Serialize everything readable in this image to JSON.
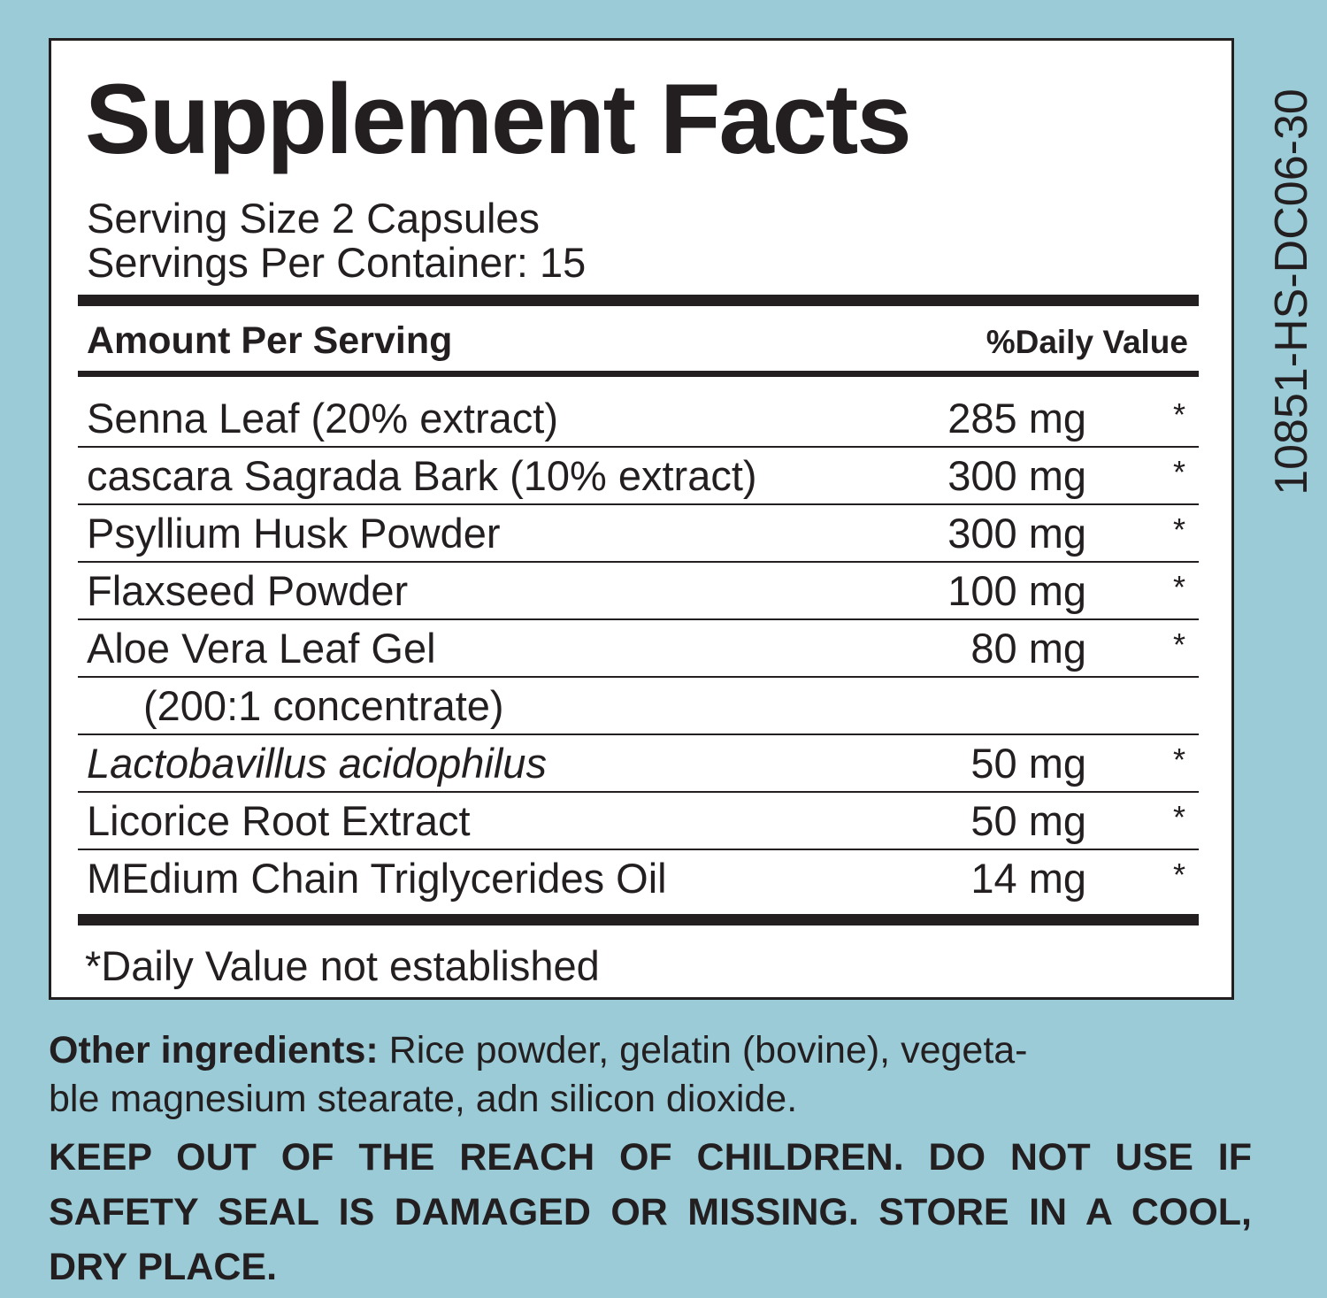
{
  "panel": {
    "title": "Supplement Facts",
    "serving_size": "Serving Size 2 Capsules",
    "servings_per_container": "Servings Per Container: 15",
    "header": {
      "amount": "Amount Per Serving",
      "daily_value": "%Daily Value"
    },
    "rows": [
      {
        "name": "Senna Leaf (20% extract)",
        "amount": "285 mg",
        "daily_value": "*"
      },
      {
        "name": "cascara Sagrada Bark (10% extract)",
        "amount": "300 mg",
        "daily_value": "*"
      },
      {
        "name": "Psyllium Husk Powder",
        "amount": "300 mg",
        "daily_value": "*"
      },
      {
        "name": "Flaxseed Powder",
        "amount": "100 mg",
        "daily_value": "*"
      },
      {
        "name": "Aloe Vera Leaf Gel",
        "amount": "80 mg",
        "daily_value": "*",
        "note": "(200:1 concentrate)"
      },
      {
        "name": "Lactobavillus acidophilus",
        "amount": "50 mg",
        "daily_value": "*",
        "italic": true
      },
      {
        "name": "Licorice Root Extract",
        "amount": "50 mg",
        "daily_value": "*"
      },
      {
        "name": "MEdium Chain Triglycerides Oil",
        "amount": "14 mg",
        "daily_value": "*"
      }
    ],
    "footnote": "*Daily Value not established"
  },
  "other_ingredients": {
    "label": "Other ingredients:",
    "lines": [
      "Rice powder, gelatin (bovine), vegeta-",
      "ble magnesium stearate, adn silicon dioxide."
    ]
  },
  "warning": {
    "lines": [
      "KEEP OUT OF THE REACH OF CHILDREN. DO NOT USE IF",
      "SAFETY SEAL IS DAMAGED OR MISSING. STORE IN A COOL,",
      "DRY PLACE."
    ]
  },
  "side_code": "10851-HS-DC06-30"
}
